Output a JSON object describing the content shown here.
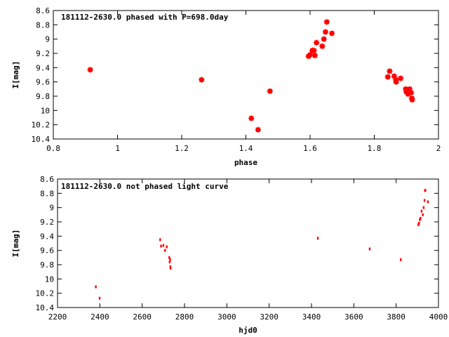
{
  "chart_data": [
    {
      "type": "scatter",
      "title": "181112-2630.0 phased with P=698.0day",
      "xlabel": "phase",
      "ylabel": "I[mag]",
      "xlim": [
        0.8,
        2.0
      ],
      "ylim": [
        10.4,
        8.6
      ],
      "y_inverted": true,
      "xticks": [
        "0.8",
        "1",
        "1.2",
        "1.4",
        "1.6",
        "1.8",
        "2"
      ],
      "yticks": [
        "8.6",
        "8.8",
        "9",
        "9.2",
        "9.4",
        "9.6",
        "9.8",
        "10",
        "10.2",
        "10.4"
      ],
      "grid": false,
      "marker_color": "#ff0000",
      "series": [
        {
          "x": [
            0.915,
            1.262,
            1.417,
            1.438,
            1.475,
            1.595,
            1.6,
            1.607,
            1.612,
            1.615,
            1.62,
            1.638,
            1.643,
            1.648,
            1.652,
            1.668,
            1.842,
            1.848,
            1.862,
            1.867,
            1.868,
            1.882,
            1.898,
            1.9,
            1.905,
            1.91,
            1.915,
            1.917,
            1.918
          ],
          "y": [
            9.43,
            9.57,
            10.11,
            10.27,
            9.73,
            9.24,
            9.22,
            9.16,
            9.16,
            9.23,
            9.05,
            9.1,
            9.0,
            8.9,
            8.76,
            8.92,
            9.53,
            9.45,
            9.52,
            9.57,
            9.6,
            9.55,
            9.7,
            9.74,
            9.77,
            9.7,
            9.75,
            9.83,
            9.85
          ]
        }
      ]
    },
    {
      "type": "scatter",
      "title": "181112-2630.0 not phased light curve",
      "xlabel": "hjd0",
      "ylabel": "I[mag]",
      "xlim": [
        2200,
        4000
      ],
      "ylim": [
        10.4,
        8.6
      ],
      "y_inverted": true,
      "xticks": [
        "2200",
        "2400",
        "2600",
        "2800",
        "3000",
        "3200",
        "3400",
        "3600",
        "3800",
        "4000"
      ],
      "yticks": [
        "8.6",
        "8.8",
        "9",
        "9.2",
        "9.4",
        "9.6",
        "9.8",
        "10",
        "10.2",
        "10.4"
      ],
      "grid": false,
      "marker_color": "#ff0000",
      "series": [
        {
          "x": [
            2381,
            2399,
            2685,
            2689,
            2700,
            2708,
            2716,
            2728,
            2730,
            2732,
            2733,
            2734,
            3430,
            3675,
            3822,
            3905,
            3908,
            3912,
            3915,
            3920,
            3926,
            3930,
            3934,
            3936,
            3938,
            3950
          ],
          "y": [
            10.11,
            10.27,
            9.45,
            9.54,
            9.53,
            9.6,
            9.55,
            9.7,
            9.76,
            9.73,
            9.83,
            9.85,
            9.43,
            9.58,
            9.73,
            9.24,
            9.22,
            9.17,
            9.15,
            9.05,
            9.1,
            9.0,
            8.9,
            8.76,
            8.76,
            8.92
          ]
        }
      ]
    }
  ]
}
